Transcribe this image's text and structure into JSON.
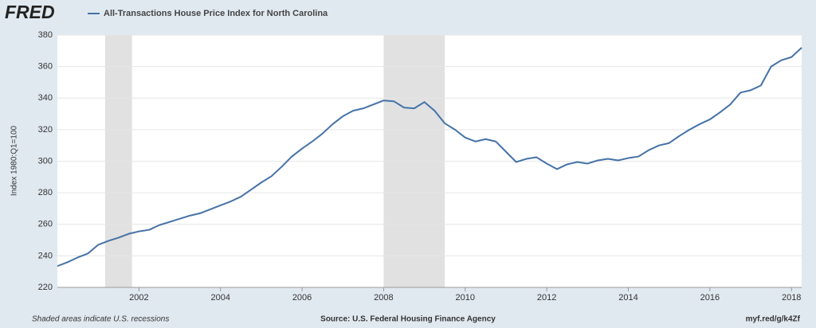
{
  "logo": "FRED",
  "chart_data": {
    "type": "line",
    "title": "All-Transactions House Price Index for North Carolina",
    "y_label": "Index 1980:Q1=100",
    "footer_left": "Shaded areas indicate U.S. recessions",
    "footer_center": "Source: U.S. Federal Housing Finance Agency",
    "footer_right": "myf.red/g/k4Zf",
    "x": [
      2000,
      2000.25,
      2000.5,
      2000.75,
      2001,
      2001.25,
      2001.5,
      2001.75,
      2002,
      2002.25,
      2002.5,
      2002.75,
      2003,
      2003.25,
      2003.5,
      2003.75,
      2004,
      2004.25,
      2004.5,
      2004.75,
      2005,
      2005.25,
      2005.5,
      2005.75,
      2006,
      2006.25,
      2006.5,
      2006.75,
      2007,
      2007.25,
      2007.5,
      2007.75,
      2008,
      2008.25,
      2008.5,
      2008.75,
      2009,
      2009.25,
      2009.5,
      2009.75,
      2010,
      2010.25,
      2010.5,
      2010.75,
      2011,
      2011.25,
      2011.5,
      2011.75,
      2012,
      2012.25,
      2012.5,
      2012.75,
      2013,
      2013.25,
      2013.5,
      2013.75,
      2014,
      2014.25,
      2014.5,
      2014.75,
      2015,
      2015.25,
      2015.5,
      2015.75,
      2016,
      2016.25,
      2016.5,
      2016.75,
      2017,
      2017.25,
      2017.5,
      2017.75,
      2018,
      2018.25
    ],
    "series": [
      {
        "name": "All-Transactions House Price Index for North Carolina",
        "color": "#4572a7",
        "values": [
          233.5,
          236,
          239,
          241.5,
          247,
          249.5,
          251.5,
          254,
          255.5,
          256.5,
          259.5,
          261.5,
          263.5,
          265.5,
          267,
          269.5,
          272,
          274.5,
          277.5,
          282,
          286.5,
          290.5,
          296.5,
          303,
          308,
          312.5,
          317.5,
          323.5,
          328.5,
          332,
          333.5,
          336,
          338.5,
          338,
          334,
          333.5,
          337.5,
          332,
          324,
          320,
          315,
          312.5,
          314,
          312.5,
          306,
          299.5,
          301.5,
          302.5,
          298.5,
          295,
          298,
          299.5,
          298.5,
          300.5,
          301.5,
          300.5,
          302,
          303,
          307,
          310,
          311.5,
          316,
          320,
          323.5,
          326.5,
          331,
          336,
          343.5,
          345,
          348,
          360,
          364,
          366,
          372
        ]
      }
    ],
    "recessions": [
      [
        2001.17,
        2001.83
      ],
      [
        2008.0,
        2009.5
      ]
    ],
    "recession_color": "#e1e1e1",
    "xlim": [
      2000,
      2018.25
    ],
    "xticks": [
      2002,
      2004,
      2006,
      2008,
      2010,
      2012,
      2014,
      2016,
      2018
    ],
    "ylim": [
      220,
      380
    ],
    "yticks": [
      220,
      240,
      260,
      280,
      300,
      320,
      340,
      360,
      380
    ],
    "grid": true
  }
}
